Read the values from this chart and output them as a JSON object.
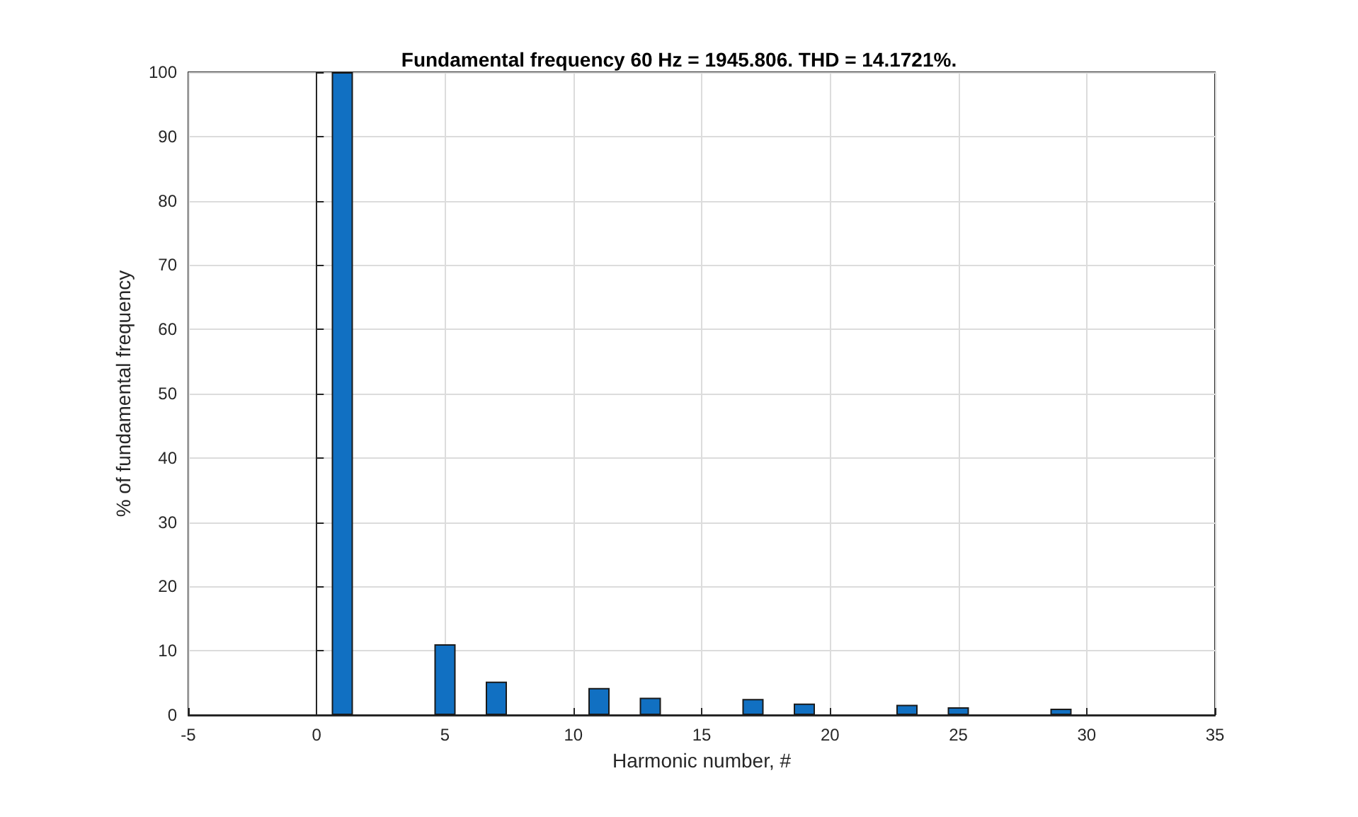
{
  "chart_data": {
    "type": "bar",
    "title": "Fundamental frequency 60 Hz = 1945.806. THD = 14.1721%.",
    "xlabel": "Harmonic number, #",
    "ylabel": "% of fundamental frequency",
    "x": [
      1,
      5,
      7,
      11,
      13,
      17,
      19,
      23,
      25,
      29
    ],
    "values": [
      100,
      11.0,
      5.2,
      4.2,
      2.7,
      2.5,
      1.8,
      1.6,
      1.2,
      1.0
    ],
    "color": "#1170c2",
    "xlim": [
      -5,
      35
    ],
    "xticks": [
      -5,
      0,
      5,
      10,
      15,
      20,
      25,
      30,
      35
    ],
    "ylim": [
      0,
      100
    ],
    "yticks": [
      0,
      10,
      20,
      30,
      40,
      50,
      60,
      70,
      80,
      90,
      100
    ],
    "grid": true
  }
}
